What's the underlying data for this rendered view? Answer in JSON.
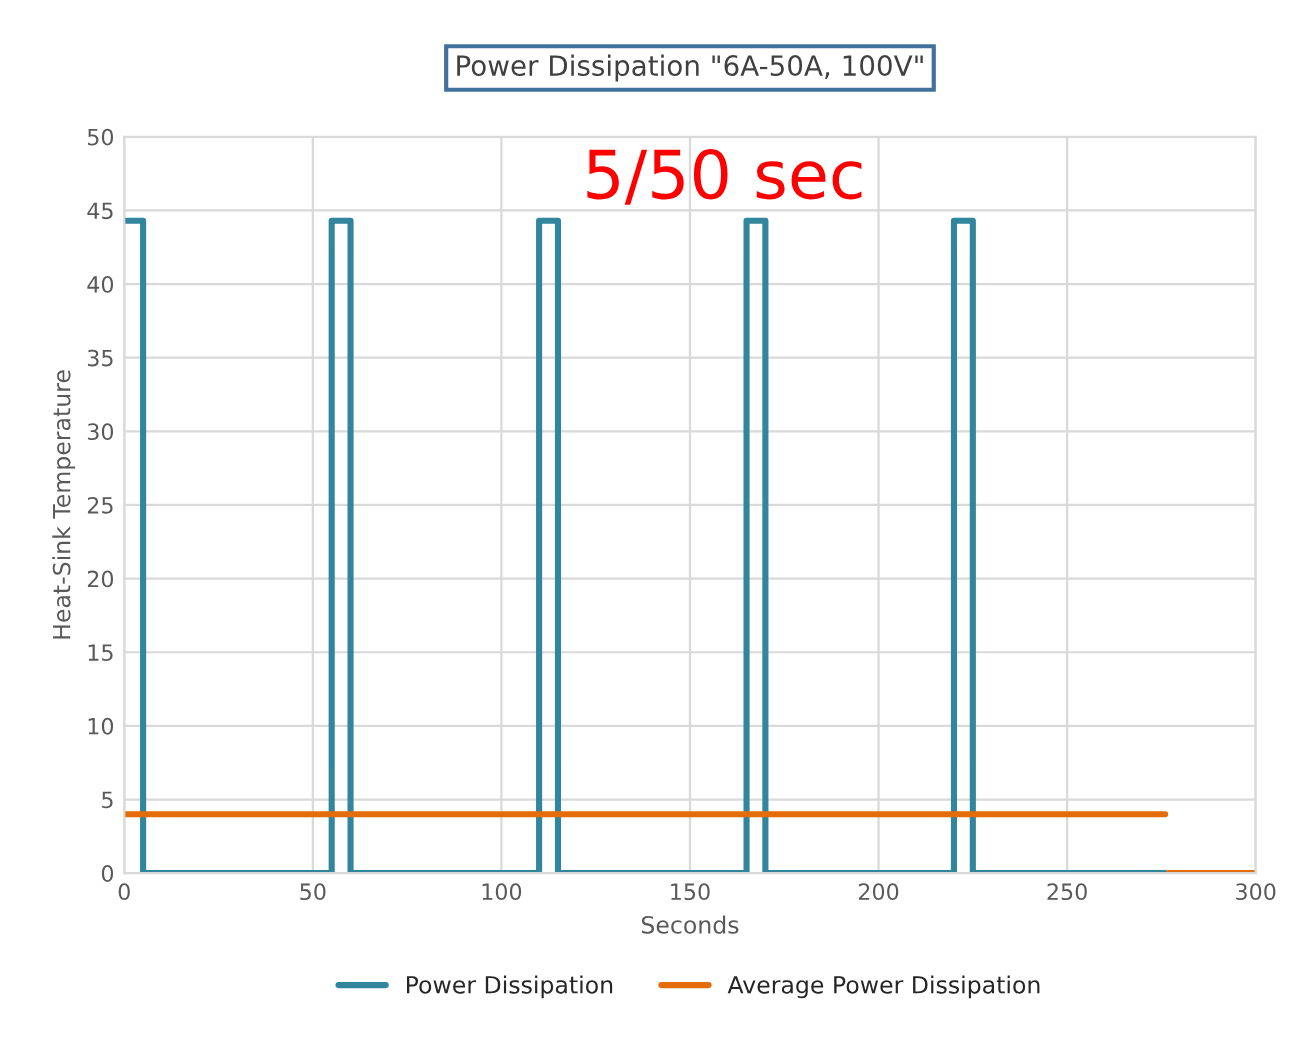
{
  "chart_data": {
    "type": "line",
    "title": "Power Dissipation \"6A-50A, 100V\"",
    "xlabel": "Seconds",
    "ylabel": "Heat-Sink Temperature",
    "annotations": [
      "5/50 sec"
    ],
    "xlim": [
      0,
      300
    ],
    "xticks": [
      0,
      50,
      100,
      150,
      200,
      250,
      300
    ],
    "ylim": [
      0,
      50
    ],
    "yticks": [
      0,
      5,
      10,
      15,
      20,
      25,
      30,
      35,
      40,
      45,
      50
    ],
    "grid": true,
    "legend": "bottom",
    "marker": "none",
    "line_style": "solid",
    "series": [
      {
        "name": "Power Dissipation",
        "color": "#31859c",
        "x": [
          0,
          5,
          5,
          55,
          55,
          60,
          60,
          110,
          110,
          115,
          115,
          165,
          165,
          170,
          170,
          220,
          220,
          225,
          225,
          276
        ],
        "values": [
          44.3,
          44.3,
          0,
          0,
          44.3,
          44.3,
          0,
          0,
          44.3,
          44.3,
          0,
          0,
          44.3,
          44.3,
          0,
          0,
          44.3,
          44.3,
          0,
          0
        ]
      },
      {
        "name": "Average Power Dissipation",
        "color": "#e46c0a",
        "x": [
          0,
          276,
          276.5,
          277,
          300
        ],
        "values": [
          4,
          4,
          null,
          0,
          0
        ]
      }
    ]
  }
}
